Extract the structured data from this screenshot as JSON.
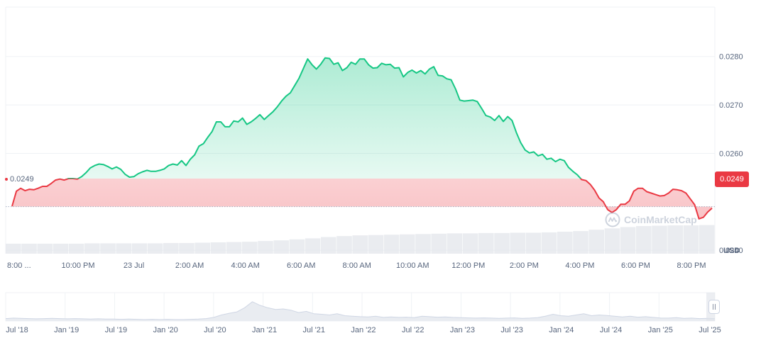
{
  "chart_data": {
    "type": "area",
    "currency": "USD",
    "base_value": "0.0249",
    "current_value": "0.0249",
    "colors": {
      "up": "#16c784",
      "down": "#ea3943",
      "up_fill": "#16c784"
    },
    "y_ticks": [
      "0.0280",
      "0.0270",
      "0.0260",
      "0.0240"
    ],
    "ylim": [
      0.02393,
      0.02902
    ],
    "x_ticks": [
      "8:00 ...",
      "10:00 PM",
      "23 Jul",
      "2:00 AM",
      "4:00 AM",
      "6:00 AM",
      "8:00 AM",
      "10:00 AM",
      "12:00 PM",
      "2:00 PM",
      "4:00 PM",
      "6:00 PM",
      "8:00 PM"
    ],
    "price_series": [
      0.02491,
      0.02522,
      0.02528,
      0.02523,
      0.02526,
      0.02525,
      0.02528,
      0.02532,
      0.02532,
      0.02538,
      0.02545,
      0.02547,
      0.02545,
      0.02548,
      0.02548,
      0.02547,
      0.02552,
      0.0256,
      0.0257,
      0.02575,
      0.02578,
      0.02577,
      0.02573,
      0.02568,
      0.02572,
      0.02567,
      0.02557,
      0.02551,
      0.02552,
      0.02558,
      0.02562,
      0.02565,
      0.02563,
      0.02563,
      0.02565,
      0.02568,
      0.02575,
      0.02578,
      0.02576,
      0.02585,
      0.02575,
      0.02588,
      0.02597,
      0.02615,
      0.0262,
      0.02633,
      0.02645,
      0.02665,
      0.02665,
      0.02655,
      0.02655,
      0.02667,
      0.02665,
      0.02673,
      0.0266,
      0.02665,
      0.02672,
      0.0268,
      0.0267,
      0.02678,
      0.02686,
      0.02696,
      0.02708,
      0.02718,
      0.02725,
      0.0274,
      0.02755,
      0.02775,
      0.02795,
      0.02783,
      0.02774,
      0.02784,
      0.02797,
      0.02796,
      0.02784,
      0.02787,
      0.02771,
      0.02777,
      0.02788,
      0.02784,
      0.02795,
      0.02795,
      0.02783,
      0.02776,
      0.02777,
      0.02786,
      0.02783,
      0.02784,
      0.02776,
      0.02777,
      0.02758,
      0.02767,
      0.02772,
      0.02766,
      0.02771,
      0.02764,
      0.02774,
      0.02779,
      0.02761,
      0.0276,
      0.02754,
      0.02752,
      0.02733,
      0.0271,
      0.02708,
      0.02709,
      0.0271,
      0.02707,
      0.02693,
      0.02678,
      0.02675,
      0.02668,
      0.02678,
      0.02666,
      0.02676,
      0.02668,
      0.02643,
      0.02622,
      0.02607,
      0.02601,
      0.02603,
      0.02595,
      0.02598,
      0.02588,
      0.0259,
      0.02583,
      0.02588,
      0.02585,
      0.02571,
      0.02563,
      0.02556,
      0.02546,
      0.02544,
      0.02536,
      0.02524,
      0.02508,
      0.025,
      0.02484,
      0.02478,
      0.02484,
      0.02495,
      0.02495,
      0.02502,
      0.02522,
      0.02528,
      0.02528,
      0.02521,
      0.02518,
      0.02515,
      0.02512,
      0.02513,
      0.02518,
      0.02526,
      0.02525,
      0.02523,
      0.02518,
      0.02506,
      0.02494,
      0.02465,
      0.02468,
      0.02479,
      0.02487
    ],
    "volume_series": [
      0.3,
      0.3,
      0.3,
      0.3,
      0.3,
      0.31,
      0.31,
      0.31,
      0.31,
      0.31,
      0.32,
      0.32,
      0.33,
      0.34,
      0.35,
      0.36,
      0.38,
      0.4,
      0.43,
      0.46,
      0.5,
      0.53,
      0.55,
      0.56,
      0.57,
      0.58,
      0.59,
      0.6,
      0.61,
      0.61,
      0.62,
      0.62,
      0.63,
      0.63,
      0.64,
      0.66,
      0.68,
      0.72,
      0.76,
      0.8,
      0.83,
      0.84,
      0.85,
      0.85,
      0.86
    ],
    "navigator": {
      "x_ticks": [
        "Jul '18",
        "Jan '19",
        "Jul '19",
        "Jan '20",
        "Jul '20",
        "Jan '21",
        "Jul '21",
        "Jan '22",
        "Jul '22",
        "Jan '23",
        "Jul '23",
        "Jan '24",
        "Jul '24",
        "Jan '25",
        "Jul '25"
      ],
      "series": [
        0.1,
        0.12,
        0.11,
        0.1,
        0.09,
        0.1,
        0.11,
        0.1,
        0.09,
        0.1,
        0.09,
        0.08,
        0.09,
        0.08,
        0.08,
        0.07,
        0.08,
        0.07,
        0.06,
        0.07,
        0.06,
        0.07,
        0.06,
        0.06,
        0.07,
        0.08,
        0.1,
        0.15,
        0.25,
        0.32,
        0.38,
        0.55,
        0.8,
        0.65,
        0.55,
        0.48,
        0.5,
        0.45,
        0.35,
        0.4,
        0.3,
        0.28,
        0.25,
        0.3,
        0.22,
        0.2,
        0.18,
        0.17,
        0.2,
        0.15,
        0.17,
        0.15,
        0.16,
        0.14,
        0.2,
        0.18,
        0.16,
        0.17,
        0.15,
        0.14,
        0.13,
        0.12,
        0.13,
        0.12,
        0.11,
        0.12,
        0.13,
        0.11,
        0.12,
        0.14,
        0.2,
        0.28,
        0.22,
        0.2,
        0.25,
        0.3,
        0.22,
        0.25,
        0.23,
        0.2,
        0.17,
        0.2,
        0.16,
        0.18,
        0.15,
        0.12,
        0.12,
        0.14,
        0.11,
        0.12,
        0.1,
        0.11,
        0.1
      ]
    }
  },
  "watermark": {
    "brand": "CoinMarketCap"
  }
}
